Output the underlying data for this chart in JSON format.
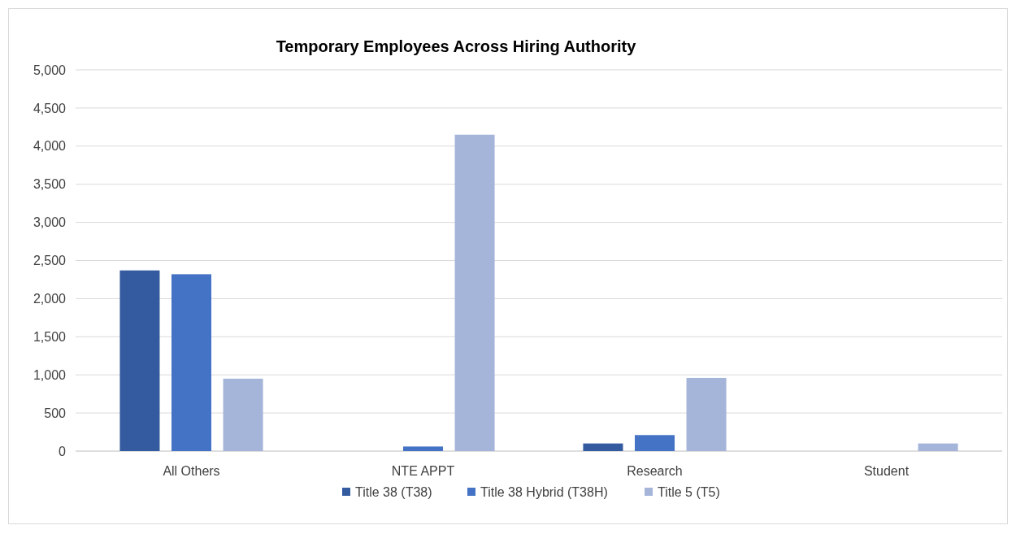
{
  "chart_data": {
    "type": "bar",
    "title": "Temporary Employees Across Hiring Authority",
    "categories": [
      "All Others",
      "NTE APPT",
      "Research",
      "Student"
    ],
    "series": [
      {
        "name": "Title 38 (T38)",
        "color": "#345b9f",
        "values": [
          2370,
          null,
          100,
          null
        ]
      },
      {
        "name": "Title 38 Hybrid (T38H)",
        "color": "#4472c4",
        "values": [
          2320,
          60,
          210,
          null
        ]
      },
      {
        "name": "Title 5 (T5)",
        "color": "#a5b4d9",
        "values": [
          950,
          4150,
          960,
          100
        ]
      }
    ],
    "ylim": [
      0,
      5000
    ],
    "yticks": [
      {
        "value": 0,
        "label": "0"
      },
      {
        "value": 500,
        "label": "500"
      },
      {
        "value": 1000,
        "label": "1,000"
      },
      {
        "value": 1500,
        "label": "1,500"
      },
      {
        "value": 2000,
        "label": "2,000"
      },
      {
        "value": 2500,
        "label": "2,500"
      },
      {
        "value": 3000,
        "label": "3,000"
      },
      {
        "value": 3500,
        "label": "3,500"
      },
      {
        "value": 4000,
        "label": "4,000"
      },
      {
        "value": 4500,
        "label": "4,500"
      },
      {
        "value": 5000,
        "label": "5,000"
      }
    ],
    "grid": "y",
    "legend": "bottom"
  }
}
